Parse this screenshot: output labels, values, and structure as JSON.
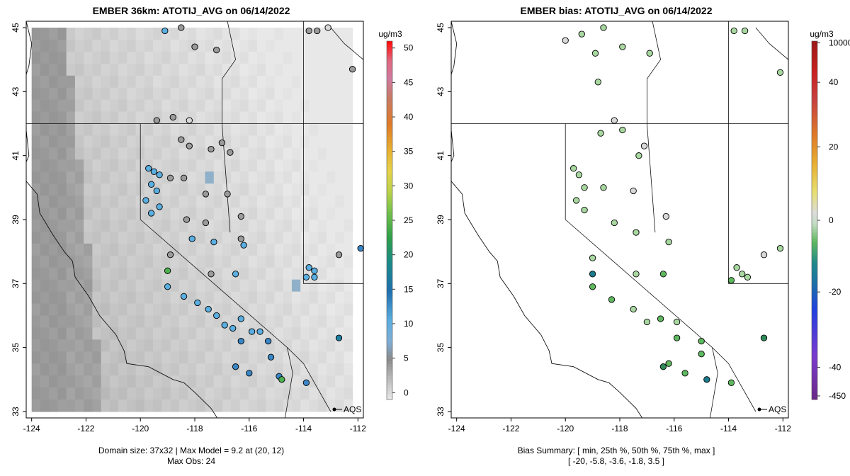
{
  "colors": {
    "obs_blue": "#5aaee0",
    "obs_dblue": "#3a86c4",
    "obs_teal": "#1f7fa0",
    "obs_green": "#4caf50",
    "obs_gray": "#9a9a9a",
    "obs_lgray": "#d8d8d8",
    "bias_lgreen": "#a8d8a0",
    "bias_green": "#5fb85f",
    "bias_dgreen": "#2e8b57",
    "bias_teal": "#1b7a8c"
  },
  "chart_data": [
    {
      "type": "heatmap",
      "title": "EMBER 36km: ATOTIJ_AVG on 06/14/2022",
      "x_ticks": [
        "-124",
        "-122",
        "-120",
        "-118",
        "-116",
        "-114",
        "-112"
      ],
      "y_ticks": [
        "33",
        "35",
        "37",
        "39",
        "41",
        "43",
        "45"
      ],
      "xlim": [
        -124.2,
        -111.8
      ],
      "ylim": [
        32.8,
        45.2
      ],
      "colorbar": {
        "unit": "ug/m3",
        "ticks": [
          "0",
          "5",
          "10",
          "15",
          "20",
          "25",
          "30",
          "35",
          "40",
          "45",
          "50"
        ],
        "range": [
          -1,
          51
        ]
      },
      "legend_label": "AQS",
      "footer_lines": [
        "Domain size: 37x32 | Max Model = 9.2 at (20, 12)",
        "Max Obs: 24"
      ],
      "domain_size": "37x32",
      "max_model": 9.2,
      "max_model_cell": [
        20,
        12
      ],
      "max_obs": 24,
      "observations": [
        {
          "lon": -119.1,
          "lat": 44.9,
          "c": "obs_blue"
        },
        {
          "lon": -118.5,
          "lat": 45.0,
          "c": "obs_gray"
        },
        {
          "lon": -118.0,
          "lat": 44.4,
          "c": "obs_gray"
        },
        {
          "lon": -117.2,
          "lat": 44.3,
          "c": "obs_gray"
        },
        {
          "lon": -113.8,
          "lat": 44.9,
          "c": "obs_gray"
        },
        {
          "lon": -113.5,
          "lat": 44.9,
          "c": "obs_gray"
        },
        {
          "lon": -113.1,
          "lat": 45.0,
          "c": "obs_lgray"
        },
        {
          "lon": -112.2,
          "lat": 43.7,
          "c": "obs_gray"
        },
        {
          "lon": -119.4,
          "lat": 42.1,
          "c": "obs_gray"
        },
        {
          "lon": -118.8,
          "lat": 42.2,
          "c": "obs_gray"
        },
        {
          "lon": -118.2,
          "lat": 42.1,
          "c": "obs_lgray"
        },
        {
          "lon": -118.5,
          "lat": 41.5,
          "c": "obs_gray"
        },
        {
          "lon": -118.2,
          "lat": 41.3,
          "c": "obs_gray"
        },
        {
          "lon": -117.4,
          "lat": 41.2,
          "c": "obs_gray"
        },
        {
          "lon": -117.0,
          "lat": 41.4,
          "c": "obs_gray"
        },
        {
          "lon": -116.7,
          "lat": 41.1,
          "c": "obs_gray"
        },
        {
          "lon": -119.7,
          "lat": 40.6,
          "c": "obs_blue"
        },
        {
          "lon": -119.5,
          "lat": 40.5,
          "c": "obs_blue"
        },
        {
          "lon": -119.3,
          "lat": 40.4,
          "c": "obs_blue"
        },
        {
          "lon": -119.6,
          "lat": 40.1,
          "c": "obs_blue"
        },
        {
          "lon": -119.4,
          "lat": 39.9,
          "c": "obs_blue"
        },
        {
          "lon": -119.8,
          "lat": 39.6,
          "c": "obs_blue"
        },
        {
          "lon": -119.3,
          "lat": 39.4,
          "c": "obs_blue"
        },
        {
          "lon": -119.6,
          "lat": 39.2,
          "c": "obs_blue"
        },
        {
          "lon": -118.9,
          "lat": 40.3,
          "c": "obs_gray"
        },
        {
          "lon": -118.4,
          "lat": 40.3,
          "c": "obs_gray"
        },
        {
          "lon": -117.6,
          "lat": 39.8,
          "c": "obs_gray"
        },
        {
          "lon": -116.8,
          "lat": 39.8,
          "c": "obs_gray"
        },
        {
          "lon": -118.3,
          "lat": 39.0,
          "c": "obs_gray"
        },
        {
          "lon": -117.6,
          "lat": 38.9,
          "c": "obs_gray"
        },
        {
          "lon": -116.3,
          "lat": 39.1,
          "c": "obs_gray"
        },
        {
          "lon": -116.3,
          "lat": 38.4,
          "c": "obs_gray"
        },
        {
          "lon": -118.1,
          "lat": 38.4,
          "c": "obs_blue"
        },
        {
          "lon": -117.3,
          "lat": 38.3,
          "c": "obs_blue"
        },
        {
          "lon": -116.2,
          "lat": 38.2,
          "c": "obs_blue"
        },
        {
          "lon": -118.9,
          "lat": 37.9,
          "c": "obs_gray"
        },
        {
          "lon": -119.0,
          "lat": 37.4,
          "c": "obs_green"
        },
        {
          "lon": -117.4,
          "lat": 37.3,
          "c": "obs_gray"
        },
        {
          "lon": -116.5,
          "lat": 37.3,
          "c": "obs_blue"
        },
        {
          "lon": -119.0,
          "lat": 36.9,
          "c": "obs_blue"
        },
        {
          "lon": -118.4,
          "lat": 36.6,
          "c": "obs_blue"
        },
        {
          "lon": -117.9,
          "lat": 36.4,
          "c": "obs_blue"
        },
        {
          "lon": -117.5,
          "lat": 36.2,
          "c": "obs_blue"
        },
        {
          "lon": -117.2,
          "lat": 36.0,
          "c": "obs_blue"
        },
        {
          "lon": -116.9,
          "lat": 35.7,
          "c": "obs_blue"
        },
        {
          "lon": -116.6,
          "lat": 35.6,
          "c": "obs_blue"
        },
        {
          "lon": -116.3,
          "lat": 35.9,
          "c": "obs_blue"
        },
        {
          "lon": -115.9,
          "lat": 35.5,
          "c": "obs_blue"
        },
        {
          "lon": -115.6,
          "lat": 35.5,
          "c": "obs_blue"
        },
        {
          "lon": -116.3,
          "lat": 35.2,
          "c": "obs_dblue"
        },
        {
          "lon": -115.3,
          "lat": 35.2,
          "c": "obs_dblue"
        },
        {
          "lon": -115.2,
          "lat": 34.7,
          "c": "obs_dblue"
        },
        {
          "lon": -116.5,
          "lat": 34.4,
          "c": "obs_dblue"
        },
        {
          "lon": -116.0,
          "lat": 34.2,
          "c": "obs_dblue"
        },
        {
          "lon": -114.9,
          "lat": 34.1,
          "c": "obs_dblue"
        },
        {
          "lon": -114.8,
          "lat": 34.0,
          "c": "obs_green"
        },
        {
          "lon": -113.9,
          "lat": 33.9,
          "c": "obs_dblue"
        },
        {
          "lon": -113.8,
          "lat": 37.5,
          "c": "obs_blue"
        },
        {
          "lon": -113.6,
          "lat": 37.4,
          "c": "obs_blue"
        },
        {
          "lon": -113.9,
          "lat": 37.2,
          "c": "obs_blue"
        },
        {
          "lon": -113.6,
          "lat": 37.2,
          "c": "obs_blue"
        },
        {
          "lon": -112.7,
          "lat": 37.9,
          "c": "obs_gray"
        },
        {
          "lon": -111.9,
          "lat": 38.1,
          "c": "obs_dblue"
        },
        {
          "lon": -112.7,
          "lat": 35.3,
          "c": "obs_teal"
        }
      ]
    },
    {
      "type": "scatter",
      "title": "EMBER bias: ATOTIJ_AVG on 06/14/2022",
      "x_ticks": [
        "-124",
        "-122",
        "-120",
        "-118",
        "-116",
        "-114",
        "-112"
      ],
      "y_ticks": [
        "33",
        "35",
        "37",
        "39",
        "41",
        "43",
        "45"
      ],
      "xlim": [
        -124.2,
        -111.8
      ],
      "ylim": [
        32.8,
        45.2
      ],
      "colorbar": {
        "unit": "ug/m3",
        "ticks": [
          "-450",
          "-40",
          "-20",
          "0",
          "20",
          "40",
          "10000"
        ]
      },
      "legend_label": "AQS",
      "footer_lines": [
        "Bias Summary: [ min, 25th %, 50th %, 75th %, max ]",
        "[ -20,   -5.8,   -3.6,   -1.8,   3.5 ]"
      ],
      "bias_summary": {
        "min": -20,
        "p25": -5.8,
        "p50": -3.6,
        "p75": -1.8,
        "max": 3.5
      },
      "observations": [
        {
          "lon": -119.4,
          "lat": 44.8,
          "c": "bias_lgreen"
        },
        {
          "lon": -118.6,
          "lat": 45.0,
          "c": "bias_lgreen"
        },
        {
          "lon": -118.9,
          "lat": 44.2,
          "c": "bias_lgreen"
        },
        {
          "lon": -117.9,
          "lat": 44.4,
          "c": "bias_lgreen"
        },
        {
          "lon": -116.9,
          "lat": 44.2,
          "c": "bias_lgreen"
        },
        {
          "lon": -113.8,
          "lat": 44.9,
          "c": "bias_lgreen"
        },
        {
          "lon": -113.4,
          "lat": 44.9,
          "c": "bias_lgreen"
        },
        {
          "lon": -112.1,
          "lat": 43.6,
          "c": "bias_lgreen"
        },
        {
          "lon": -120.0,
          "lat": 44.6,
          "c": "obs_lgray"
        },
        {
          "lon": -118.8,
          "lat": 43.3,
          "c": "bias_lgreen"
        },
        {
          "lon": -118.2,
          "lat": 42.1,
          "c": "obs_lgray"
        },
        {
          "lon": -118.7,
          "lat": 41.7,
          "c": "bias_lgreen"
        },
        {
          "lon": -117.9,
          "lat": 41.8,
          "c": "bias_lgreen"
        },
        {
          "lon": -117.3,
          "lat": 41.0,
          "c": "bias_lgreen"
        },
        {
          "lon": -117.1,
          "lat": 41.3,
          "c": "obs_lgray"
        },
        {
          "lon": -119.7,
          "lat": 40.6,
          "c": "bias_lgreen"
        },
        {
          "lon": -119.5,
          "lat": 40.4,
          "c": "bias_lgreen"
        },
        {
          "lon": -119.3,
          "lat": 40.0,
          "c": "bias_lgreen"
        },
        {
          "lon": -119.6,
          "lat": 39.6,
          "c": "bias_lgreen"
        },
        {
          "lon": -119.3,
          "lat": 39.3,
          "c": "bias_lgreen"
        },
        {
          "lon": -118.6,
          "lat": 40.0,
          "c": "bias_lgreen"
        },
        {
          "lon": -117.5,
          "lat": 39.9,
          "c": "obs_lgray"
        },
        {
          "lon": -116.3,
          "lat": 39.1,
          "c": "obs_lgray"
        },
        {
          "lon": -118.2,
          "lat": 38.9,
          "c": "bias_lgreen"
        },
        {
          "lon": -117.4,
          "lat": 38.6,
          "c": "bias_lgreen"
        },
        {
          "lon": -116.2,
          "lat": 38.3,
          "c": "bias_lgreen"
        },
        {
          "lon": -119.0,
          "lat": 37.8,
          "c": "bias_lgreen"
        },
        {
          "lon": -119.0,
          "lat": 37.3,
          "c": "bias_teal"
        },
        {
          "lon": -117.4,
          "lat": 37.3,
          "c": "bias_lgreen"
        },
        {
          "lon": -116.4,
          "lat": 37.3,
          "c": "bias_green"
        },
        {
          "lon": -119.0,
          "lat": 36.9,
          "c": "bias_green"
        },
        {
          "lon": -118.3,
          "lat": 36.5,
          "c": "bias_green"
        },
        {
          "lon": -117.5,
          "lat": 36.2,
          "c": "bias_lgreen"
        },
        {
          "lon": -117.0,
          "lat": 35.8,
          "c": "bias_lgreen"
        },
        {
          "lon": -116.5,
          "lat": 35.9,
          "c": "bias_green"
        },
        {
          "lon": -115.9,
          "lat": 35.3,
          "c": "bias_green"
        },
        {
          "lon": -115.9,
          "lat": 35.8,
          "c": "bias_lgreen"
        },
        {
          "lon": -115.0,
          "lat": 35.2,
          "c": "bias_green"
        },
        {
          "lon": -115.0,
          "lat": 34.8,
          "c": "bias_green"
        },
        {
          "lon": -116.4,
          "lat": 34.4,
          "c": "bias_dgreen"
        },
        {
          "lon": -116.2,
          "lat": 34.5,
          "c": "bias_green"
        },
        {
          "lon": -115.6,
          "lat": 34.2,
          "c": "bias_green"
        },
        {
          "lon": -114.8,
          "lat": 34.0,
          "c": "bias_teal"
        },
        {
          "lon": -113.9,
          "lat": 33.9,
          "c": "bias_green"
        },
        {
          "lon": -113.7,
          "lat": 37.5,
          "c": "bias_lgreen"
        },
        {
          "lon": -113.5,
          "lat": 37.3,
          "c": "bias_lgreen"
        },
        {
          "lon": -113.9,
          "lat": 37.1,
          "c": "bias_green"
        },
        {
          "lon": -113.3,
          "lat": 37.2,
          "c": "bias_lgreen"
        },
        {
          "lon": -112.7,
          "lat": 37.9,
          "c": "obs_lgray"
        },
        {
          "lon": -112.1,
          "lat": 38.1,
          "c": "bias_lgreen"
        },
        {
          "lon": -112.7,
          "lat": 35.3,
          "c": "bias_dgreen"
        }
      ]
    }
  ]
}
